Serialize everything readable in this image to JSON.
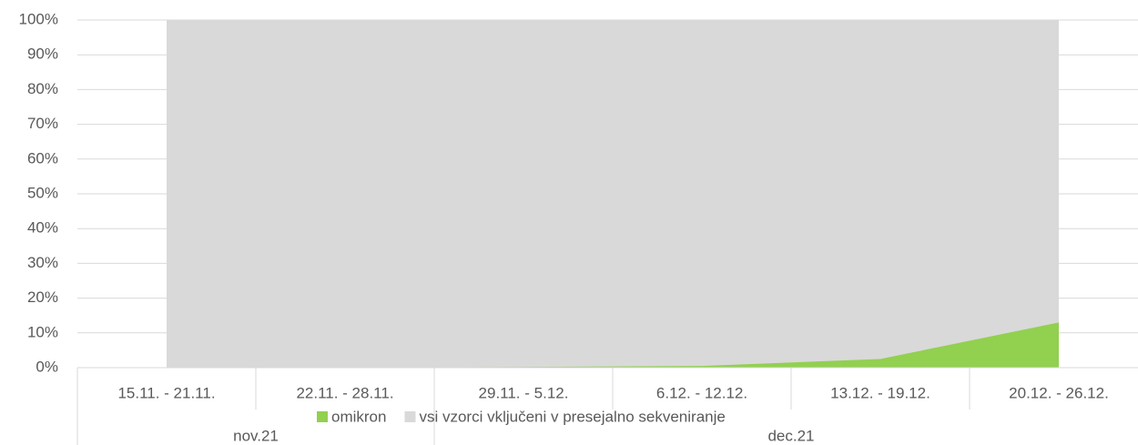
{
  "chart_data": {
    "type": "area",
    "categories": [
      "15.11. - 21.11.",
      "22.11. - 28.11.",
      "29.11. - 5.12.",
      "6.12. - 12.12.",
      "13.12. - 19.12.",
      "20.12. - 26.12."
    ],
    "groups": [
      {
        "label": "nov.21",
        "count": 2
      },
      {
        "label": "dec.21",
        "count": 4
      }
    ],
    "series": [
      {
        "name": "omikron",
        "color": "#92d050",
        "values": [
          0,
          0,
          0.2,
          0.5,
          2.5,
          13
        ]
      },
      {
        "name": "vsi vzorci vključeni v presejalno sekveniranje",
        "color": "#d9d9d9",
        "values": [
          100,
          100,
          100,
          100,
          100,
          100
        ]
      }
    ],
    "ylim": [
      0,
      100
    ],
    "yticks": [
      {
        "value": 0,
        "label": "0%"
      },
      {
        "value": 10,
        "label": "10%"
      },
      {
        "value": 20,
        "label": "20%"
      },
      {
        "value": 30,
        "label": "30%"
      },
      {
        "value": 40,
        "label": "40%"
      },
      {
        "value": 50,
        "label": "50%"
      },
      {
        "value": 60,
        "label": "60%"
      },
      {
        "value": 70,
        "label": "70%"
      },
      {
        "value": 80,
        "label": "80%"
      },
      {
        "value": 90,
        "label": "90%"
      },
      {
        "value": 100,
        "label": "100%"
      }
    ],
    "grid": true,
    "legend": "bottom"
  }
}
